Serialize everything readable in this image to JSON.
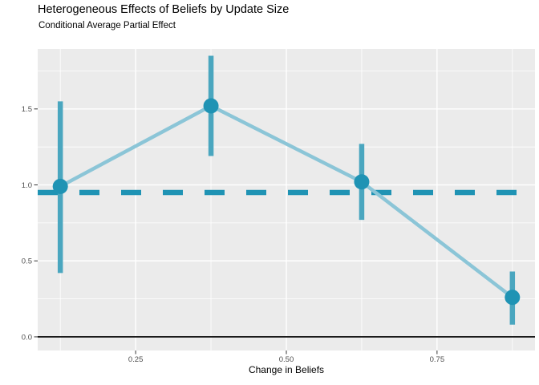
{
  "chart_data": {
    "type": "line",
    "title": "Heterogeneous Effects of Beliefs by Update Size",
    "subtitle": "Conditional Average Partial Effect",
    "xlabel": "Change in Beliefs",
    "ylabel": "",
    "xlim": [
      0.0875,
      0.9125
    ],
    "ylim": [
      -0.09,
      1.895
    ],
    "x_major_ticks": {
      "labels": [
        "0.25",
        "0.50",
        "0.75"
      ],
      "values": [
        0.25,
        0.5,
        0.75
      ]
    },
    "y_major_ticks": {
      "labels": [
        "0.0",
        "0.5",
        "1.0",
        "1.5"
      ],
      "values": [
        0.0,
        0.5,
        1.0,
        1.5
      ]
    },
    "x_minor_gridlines": [
      0.125,
      0.375,
      0.625,
      0.875
    ],
    "y_minor_gridlines": [
      0.25,
      0.75,
      1.25,
      1.75
    ],
    "x": [
      0.125,
      0.375,
      0.625,
      0.875
    ],
    "y": [
      0.99,
      1.52,
      1.02,
      0.26
    ],
    "ci_low": [
      0.42,
      1.19,
      0.77,
      0.08
    ],
    "ci_high": [
      1.55,
      1.85,
      1.27,
      0.43
    ],
    "reference_lines": [
      {
        "style": "dashed",
        "y": 0.95
      },
      {
        "style": "solid",
        "y": 0.0
      }
    ],
    "legend": "none",
    "grid": {
      "major": true,
      "minor": true
    }
  },
  "colors": {
    "page_background": "#ffffff",
    "panel_background": "#ebebeb",
    "gridline": "#ffffff",
    "point": "#1f93b4",
    "error_bar": "#4aa6bf",
    "trend_line": "#8bc5d7",
    "dashed_reference": "#1f93b4",
    "zero_line": "#1a1a1a",
    "tick_mark": "#333333",
    "tick_label": "#4d4d4d",
    "text": "#000000"
  }
}
